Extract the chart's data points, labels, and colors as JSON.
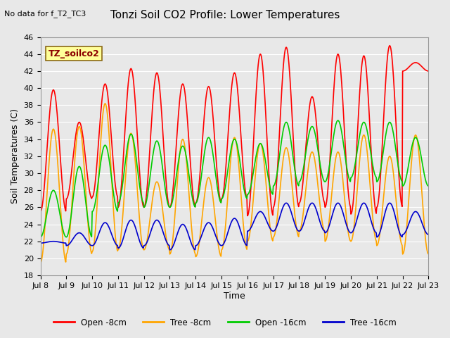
{
  "title": "Tonzi Soil CO2 Profile: Lower Temperatures",
  "top_left_text": "No data for f_T2_TC3",
  "ylabel": "Soil Temperatures (C)",
  "xlabel": "Time",
  "legend_label_box": "TZ_soilco2",
  "ylim": [
    18,
    46
  ],
  "yticks": [
    18,
    20,
    22,
    24,
    26,
    28,
    30,
    32,
    34,
    36,
    38,
    40,
    42,
    44,
    46
  ],
  "xtick_labels": [
    "Jul 8",
    "Jul 9",
    "Jul 10",
    "Jul 11",
    "Jul 12",
    "Jul 13",
    "Jul 14",
    "Jul 15",
    "Jul 16",
    "Jul 17",
    "Jul 18",
    "Jul 19",
    "Jul 20",
    "Jul 21",
    "Jul 22",
    "Jul 23"
  ],
  "colors": {
    "open_8cm": "#FF0000",
    "tree_8cm": "#FFA500",
    "open_16cm": "#00CC00",
    "tree_16cm": "#0000CC"
  },
  "legend_entries": [
    "Open -8cm",
    "Tree -8cm",
    "Open -16cm",
    "Tree -16cm"
  ],
  "background_color": "#E8E8E8",
  "plot_bg_color": "#E8E8E8",
  "grid_color": "#FFFFFF",
  "n_days": 15,
  "open8_peaks": [
    39.8,
    36.0,
    40.5,
    42.3,
    41.8,
    40.5,
    40.2,
    41.8,
    44.0,
    44.8,
    39.0,
    44.0,
    43.8,
    45.0,
    43.0
  ],
  "open8_troughs": [
    25.5,
    27.0,
    27.2,
    26.0,
    26.0,
    26.0,
    26.5,
    27.0,
    25.0,
    26.0,
    26.5,
    26.0,
    25.2,
    26.0,
    42.0
  ],
  "tree8_peaks": [
    35.2,
    35.5,
    38.2,
    34.7,
    29.0,
    34.0,
    29.5,
    34.2,
    33.5,
    33.0,
    32.5,
    32.5,
    34.5,
    32.0,
    34.5
  ],
  "tree8_troughs": [
    19.5,
    20.5,
    20.8,
    21.0,
    21.0,
    20.5,
    20.2,
    21.0,
    22.0,
    22.5,
    23.2,
    22.0,
    22.0,
    21.5,
    20.5
  ],
  "open16_peaks": [
    28.0,
    30.8,
    33.3,
    34.6,
    33.8,
    33.2,
    34.2,
    34.0,
    33.5,
    36.0,
    35.5,
    36.2,
    36.0,
    36.0,
    34.2
  ],
  "open16_troughs": [
    22.5,
    22.5,
    25.5,
    26.5,
    26.0,
    26.0,
    26.5,
    27.0,
    27.5,
    28.5,
    29.0,
    29.0,
    29.5,
    29.0,
    28.5
  ],
  "tree16_peaks": [
    22.0,
    23.0,
    24.2,
    24.5,
    24.5,
    24.0,
    24.2,
    24.7,
    25.5,
    26.5,
    26.5,
    26.5,
    26.5,
    26.5,
    25.5
  ],
  "tree16_troughs": [
    21.8,
    21.5,
    21.5,
    21.2,
    21.5,
    21.0,
    21.5,
    21.5,
    23.2,
    23.2,
    23.2,
    23.0,
    23.0,
    22.5,
    22.8
  ]
}
